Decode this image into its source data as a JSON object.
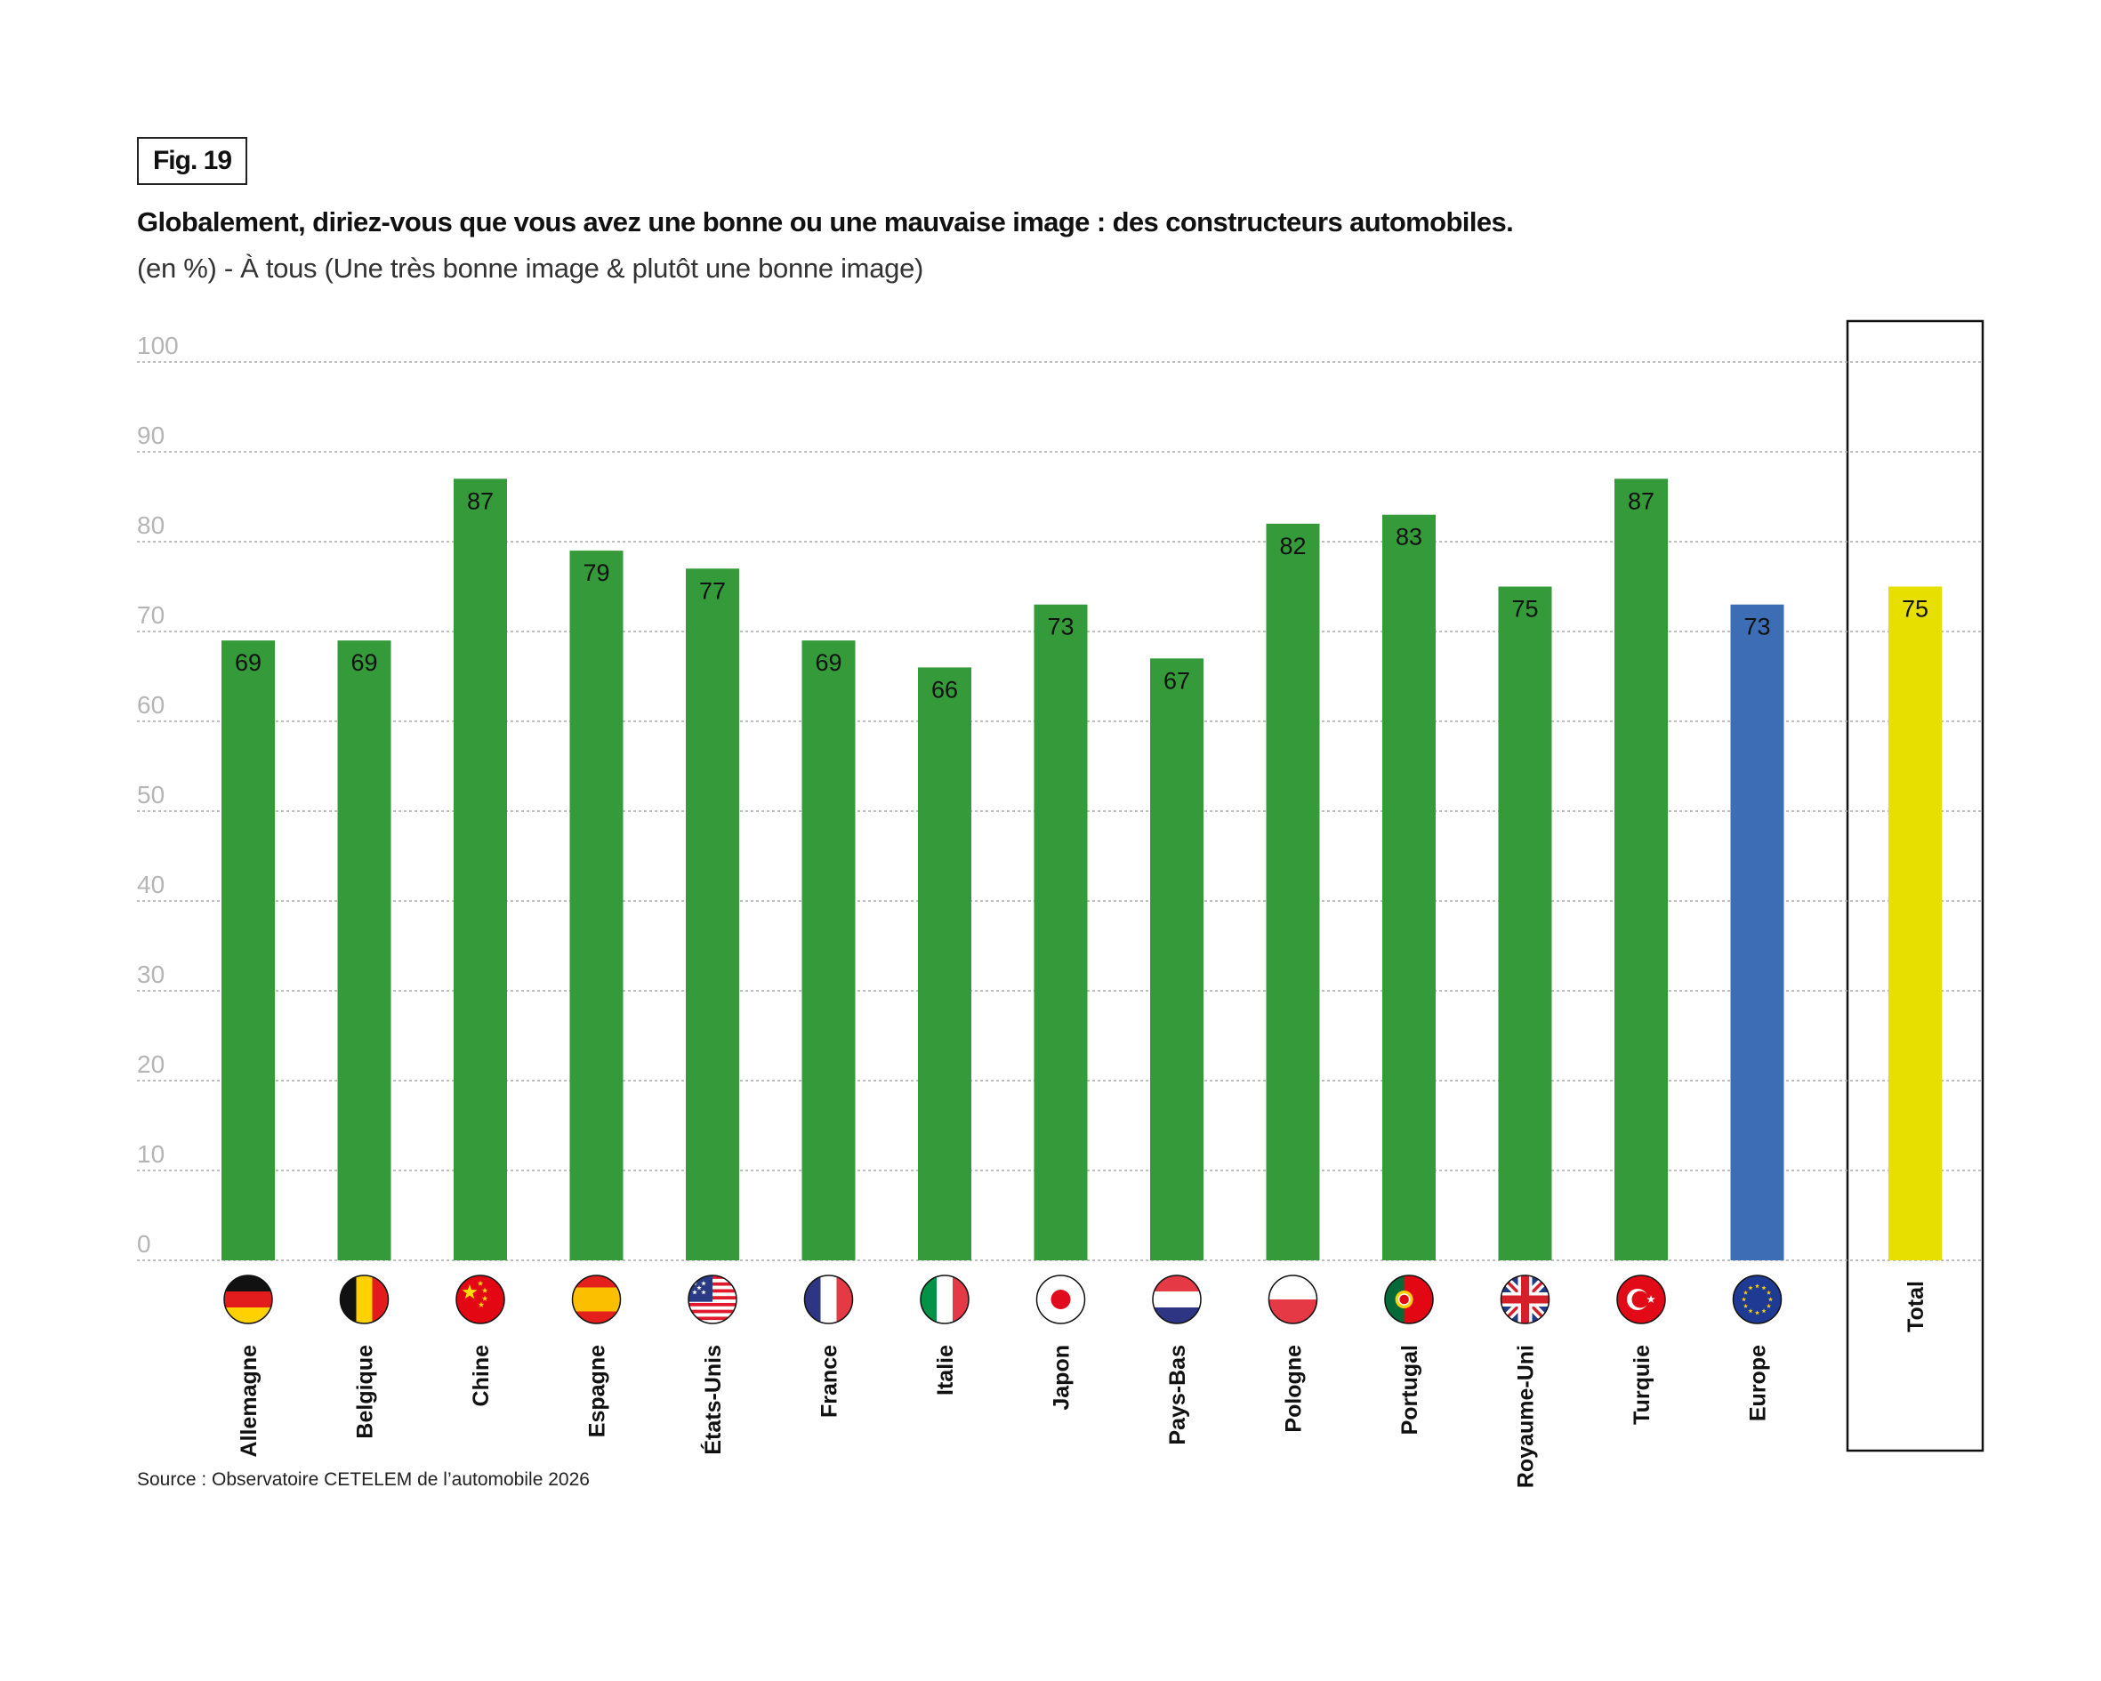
{
  "figure_label": "Fig. 19",
  "title": "Globalement, diriez-vous que vous avez une bonne ou une mauvaise image : des constructeurs automobiles.",
  "subtitle": "(en %) - À tous (Une très bonne image & plutôt une bonne image)",
  "source": "Source : Observatoire CETELEM de l’automobile 2026",
  "colors": {
    "country": "#359a3a",
    "europe": "#3c6db5",
    "total": "#e6df00",
    "grid": "#aaaaaa",
    "tick": "#b5b5b5"
  },
  "chart_data": {
    "type": "bar",
    "title": "Globalement, diriez-vous que vous avez une bonne ou une mauvaise image : des constructeurs automobiles.",
    "xlabel": "",
    "ylabel": "%",
    "ylim": [
      0,
      100
    ],
    "yticks": [
      "0",
      "10",
      "20",
      "30",
      "40",
      "50",
      "60",
      "70",
      "80",
      "90",
      "100"
    ],
    "grid": true,
    "categories": [
      "Allemagne",
      "Belgique",
      "Chine",
      "Espagne",
      "États-Unis",
      "France",
      "Italie",
      "Japon",
      "Pays-Bas",
      "Pologne",
      "Portugal",
      "Royaume-Uni",
      "Turquie",
      "Europe",
      "Total"
    ],
    "values": [
      69,
      69,
      87,
      79,
      77,
      69,
      66,
      73,
      67,
      82,
      83,
      75,
      87,
      73,
      75
    ],
    "bar_kind": [
      "country",
      "country",
      "country",
      "country",
      "country",
      "country",
      "country",
      "country",
      "country",
      "country",
      "country",
      "country",
      "country",
      "europe",
      "total"
    ],
    "flags": [
      "germany-flag-icon",
      "belgium-flag-icon",
      "china-flag-icon",
      "spain-flag-icon",
      "usa-flag-icon",
      "france-flag-icon",
      "italy-flag-icon",
      "japan-flag-icon",
      "netherlands-flag-icon",
      "poland-flag-icon",
      "portugal-flag-icon",
      "uk-flag-icon",
      "turkey-flag-icon",
      "eu-flag-icon",
      null
    ]
  }
}
